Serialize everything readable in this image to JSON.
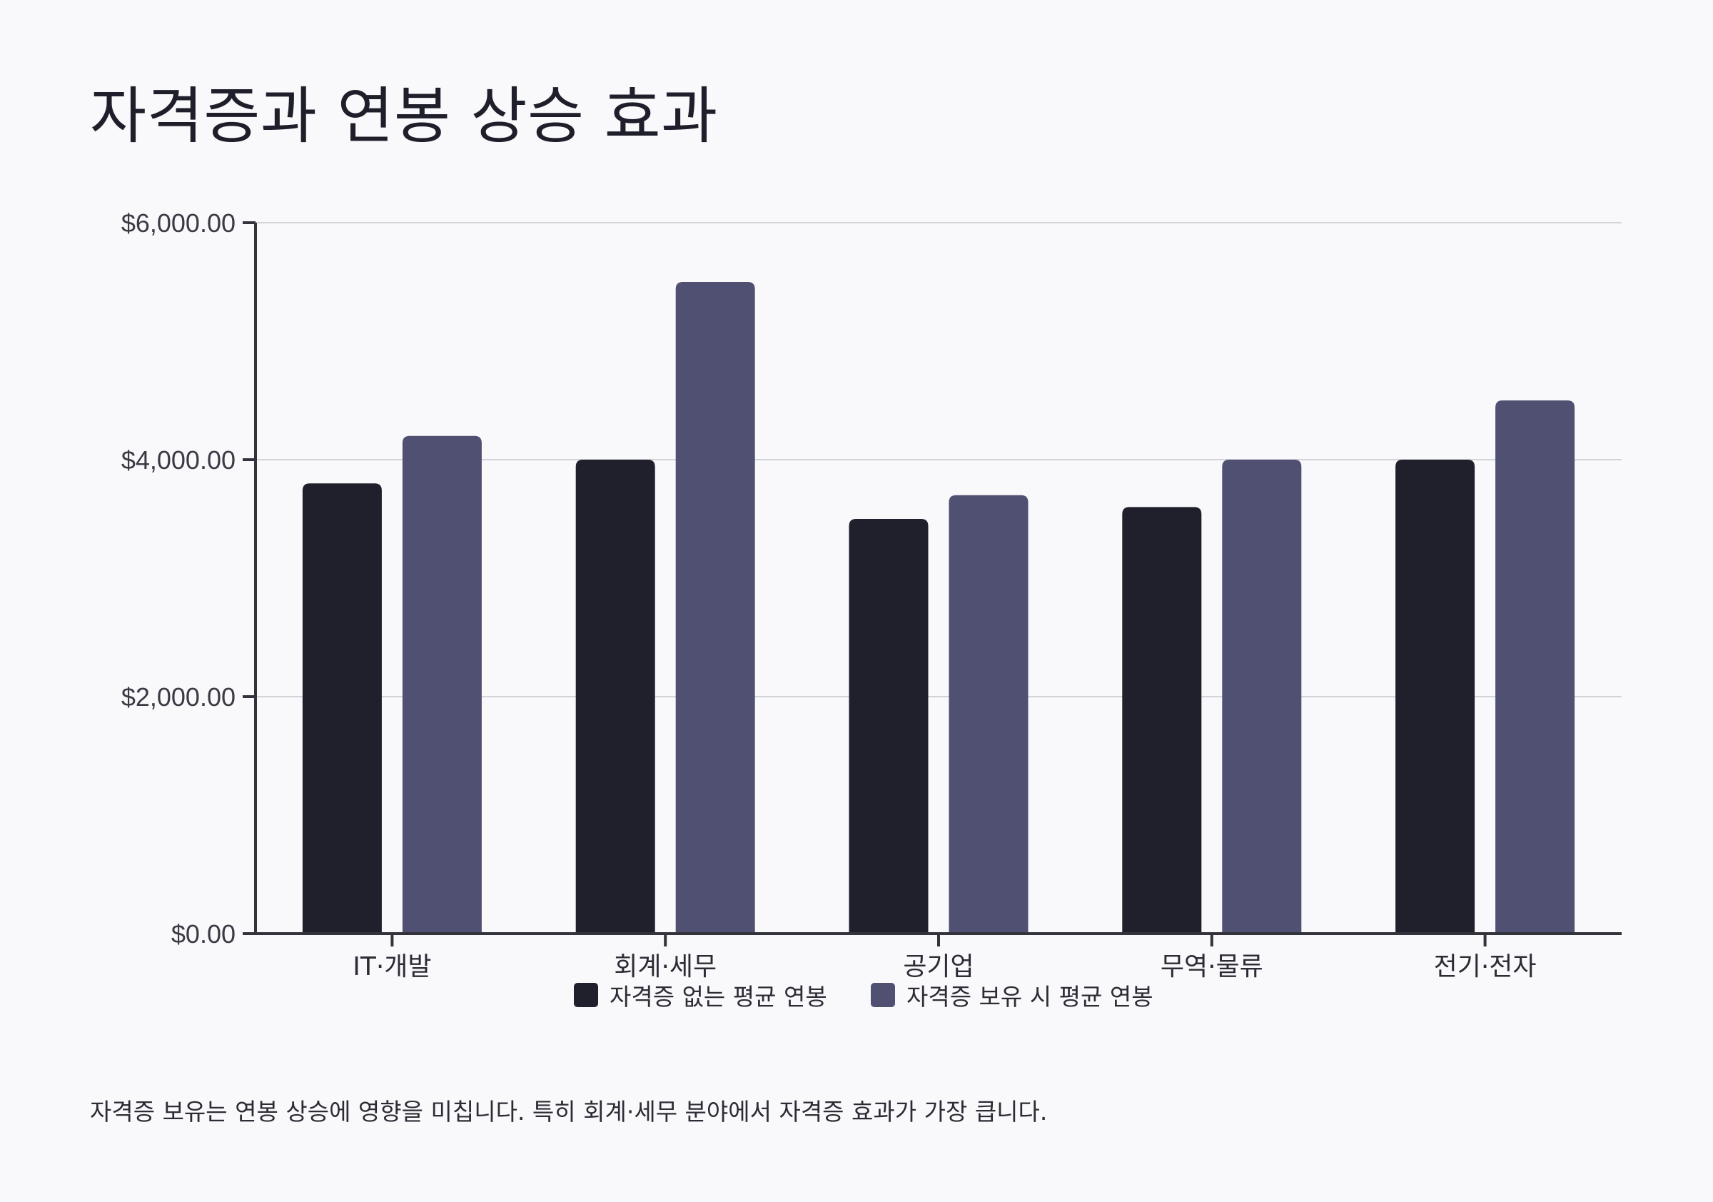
{
  "title": "자격증과 연봉 상승 효과",
  "footnote": "자격증 보유는 연봉 상승에 영향을 미칩니다. 특히 회계·세무 분야에서 자격증 효과가 가장 큽니다.",
  "colors": {
    "background": "#f9f9fb",
    "series_without": "#20202d",
    "series_with": "#4f5072",
    "axis": "#33333b",
    "grid": "#d3d3da"
  },
  "chart_data": {
    "type": "bar",
    "title": "자격증과 연봉 상승 효과",
    "xlabel": "",
    "ylabel": "",
    "categories": [
      "IT·개발",
      "회계·세무",
      "공기업",
      "무역·물류",
      "전기·전자"
    ],
    "series": [
      {
        "name": "자격증 없는 평균 연봉",
        "values": [
          3800,
          4000,
          3500,
          3600,
          4000
        ]
      },
      {
        "name": "자격증 보유 시 평균 연봉",
        "values": [
          4200,
          5500,
          3700,
          4000,
          4500
        ]
      }
    ],
    "ylim": [
      0,
      6000
    ],
    "y_ticks": [
      0,
      2000,
      4000,
      6000
    ],
    "y_tick_labels": [
      "$0.00",
      "$2,000.00",
      "$4,000.00",
      "$6,000.00"
    ],
    "grid": true,
    "legend_position": "bottom-center"
  }
}
